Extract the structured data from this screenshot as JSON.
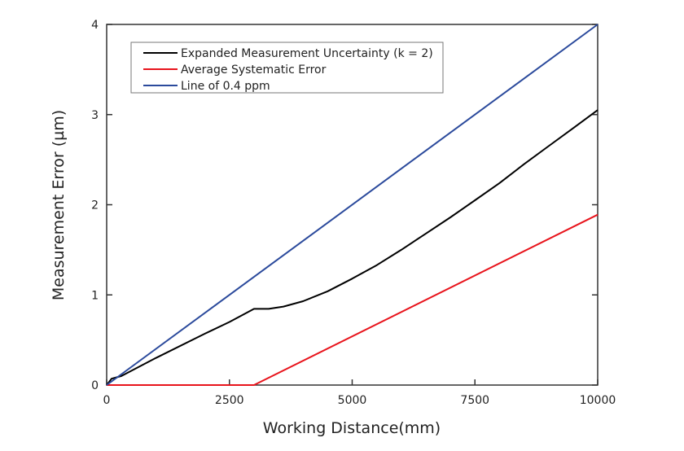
{
  "chart_data": {
    "type": "line",
    "title": "",
    "xlabel": "Working Distance(mm)",
    "ylabel": "Measurement Error (µm)",
    "xlim": [
      0,
      10000
    ],
    "ylim": [
      0,
      4
    ],
    "xticks": [
      0,
      2500,
      5000,
      7500,
      10000
    ],
    "yticks": [
      0,
      1,
      2,
      3,
      4
    ],
    "grid": false,
    "legend_position": "top-left",
    "series": [
      {
        "name": "Expanded Measurement Uncertainty (k = 2)",
        "color": "#000000",
        "x": [
          0,
          100,
          300,
          1000,
          2000,
          2500,
          3000,
          3300,
          3600,
          4000,
          4500,
          5000,
          5500,
          6000,
          6500,
          7000,
          7500,
          8000,
          8500,
          9000,
          9500,
          10000
        ],
        "y": [
          0,
          0.07,
          0.1,
          0.3,
          0.57,
          0.7,
          0.845,
          0.845,
          0.87,
          0.93,
          1.04,
          1.18,
          1.33,
          1.5,
          1.68,
          1.86,
          2.05,
          2.24,
          2.45,
          2.65,
          2.85,
          3.05
        ]
      },
      {
        "name": "Average Systematic Error",
        "color": "#e8141c",
        "x": [
          0,
          3000,
          10000
        ],
        "y": [
          0,
          0,
          1.89
        ]
      },
      {
        "name": "Line of 0.4 ppm",
        "color": "#2b4a9c",
        "x": [
          0,
          10000
        ],
        "y": [
          0,
          4
        ]
      }
    ]
  }
}
